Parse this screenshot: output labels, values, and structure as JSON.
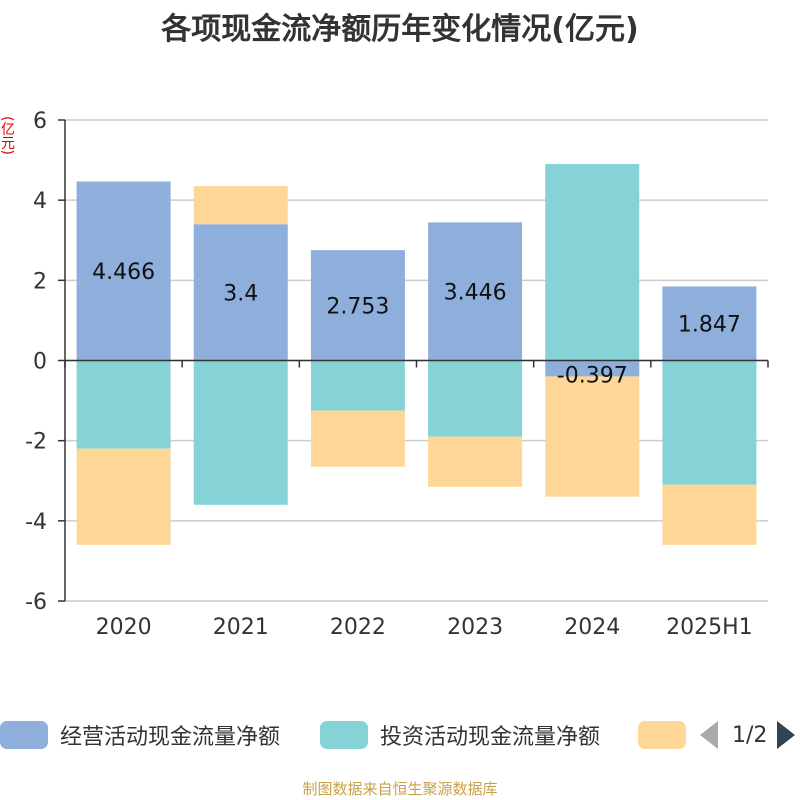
{
  "title": "各项现金流净额历年变化情况(亿元)",
  "y_unit": "(亿元)",
  "legend": {
    "items": [
      {
        "label": "经营活动现金流量净额",
        "color": "#8eaedb"
      },
      {
        "label": "投资活动现金流量净额",
        "color": "#85d3d7"
      },
      {
        "label": "",
        "color": "#fed797"
      }
    ],
    "page": "1/2"
  },
  "footer": "制图数据来自恒生聚源数据库",
  "chart_data": {
    "type": "bar",
    "stacked": true,
    "categories": [
      "2020",
      "2021",
      "2022",
      "2023",
      "2024",
      "2025H1"
    ],
    "ylim": [
      -6,
      6
    ],
    "yticks": [
      6,
      4,
      2,
      0,
      -2,
      -4,
      -6
    ],
    "grid": true,
    "legend_position": "bottom",
    "series": [
      {
        "name": "经营活动现金流量净额",
        "color": "#8eaedb",
        "values": [
          4.466,
          3.4,
          2.753,
          3.446,
          -0.397,
          1.847
        ],
        "labels": [
          "4.466",
          "3.4",
          "2.753",
          "3.446",
          "-0.397",
          "1.847"
        ]
      },
      {
        "name": "投资活动现金流量净额",
        "color": "#85d3d7",
        "values": [
          -2.2,
          -3.6,
          -1.25,
          -1.9,
          4.9,
          -3.1
        ]
      },
      {
        "color": "#fed797",
        "values": [
          -2.4,
          0.95,
          -1.4,
          -1.25,
          -3.0,
          -1.5
        ]
      }
    ]
  }
}
